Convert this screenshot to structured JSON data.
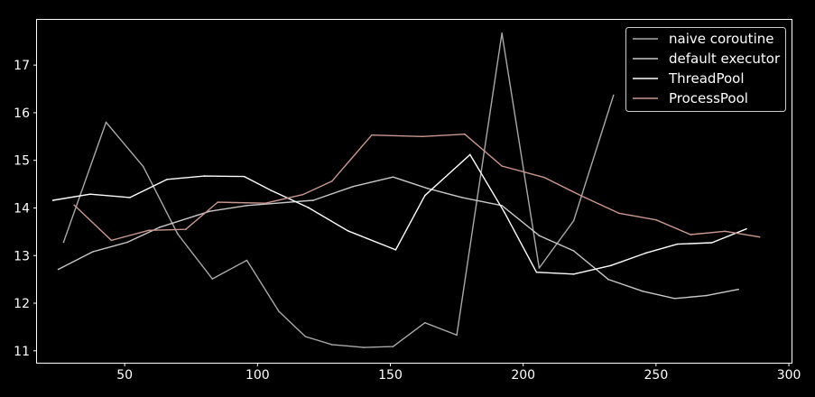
{
  "chart_data": {
    "type": "line",
    "title": "",
    "xlabel": "",
    "ylabel": "",
    "xlim": [
      17,
      301
    ],
    "ylim": [
      10.75,
      17.95
    ],
    "xticks": [
      50,
      100,
      150,
      200,
      250,
      300
    ],
    "yticks": [
      11,
      12,
      13,
      14,
      15,
      16,
      17
    ],
    "grid": false,
    "legend_position": "top-right",
    "background": "#000000",
    "axis_color": "#ffffff",
    "series": [
      {
        "name": "naive coroutine",
        "color": "#a9a9a9",
        "x": [
          27,
          43,
          57,
          70,
          83,
          96,
          108,
          118,
          128,
          140,
          151,
          163,
          175,
          192,
          206,
          219,
          234
        ],
        "y": [
          13.28,
          15.8,
          14.87,
          13.45,
          12.51,
          12.9,
          11.83,
          11.3,
          11.13,
          11.07,
          11.09,
          11.59,
          11.33,
          17.67,
          12.74,
          13.73,
          16.37
        ]
      },
      {
        "name": "default executor",
        "color": "#c8c8c8",
        "x": [
          25,
          38,
          51,
          63,
          82,
          96,
          121,
          136,
          151,
          164,
          177,
          192,
          206,
          219,
          232,
          245,
          257,
          269,
          281
        ],
        "y": [
          12.71,
          13.08,
          13.28,
          13.59,
          13.93,
          14.05,
          14.16,
          14.45,
          14.65,
          14.41,
          14.22,
          14.05,
          13.42,
          13.1,
          12.5,
          12.25,
          12.1,
          12.16,
          12.29
        ]
      },
      {
        "name": "ThreadPool",
        "color": "#ffffff",
        "x": [
          23,
          37,
          52,
          66,
          80,
          95,
          105,
          119,
          134,
          152,
          163,
          180,
          193,
          205,
          219,
          233,
          246,
          258,
          271,
          284
        ],
        "y": [
          14.16,
          14.29,
          14.22,
          14.6,
          14.67,
          14.66,
          14.37,
          14.01,
          13.52,
          13.12,
          14.26,
          15.12,
          13.9,
          12.65,
          12.61,
          12.79,
          13.05,
          13.24,
          13.27,
          13.56
        ]
      },
      {
        "name": "ProcessPool",
        "color": "#c99890",
        "x": [
          31,
          45,
          59,
          73,
          85,
          103,
          117,
          128,
          143,
          162,
          178,
          192,
          208,
          222,
          236,
          250,
          263,
          276,
          289
        ],
        "y": [
          14.06,
          13.32,
          13.53,
          13.55,
          14.12,
          14.1,
          14.28,
          14.56,
          15.53,
          15.5,
          15.55,
          14.88,
          14.64,
          14.25,
          13.89,
          13.75,
          13.44,
          13.51,
          13.39
        ]
      }
    ]
  }
}
